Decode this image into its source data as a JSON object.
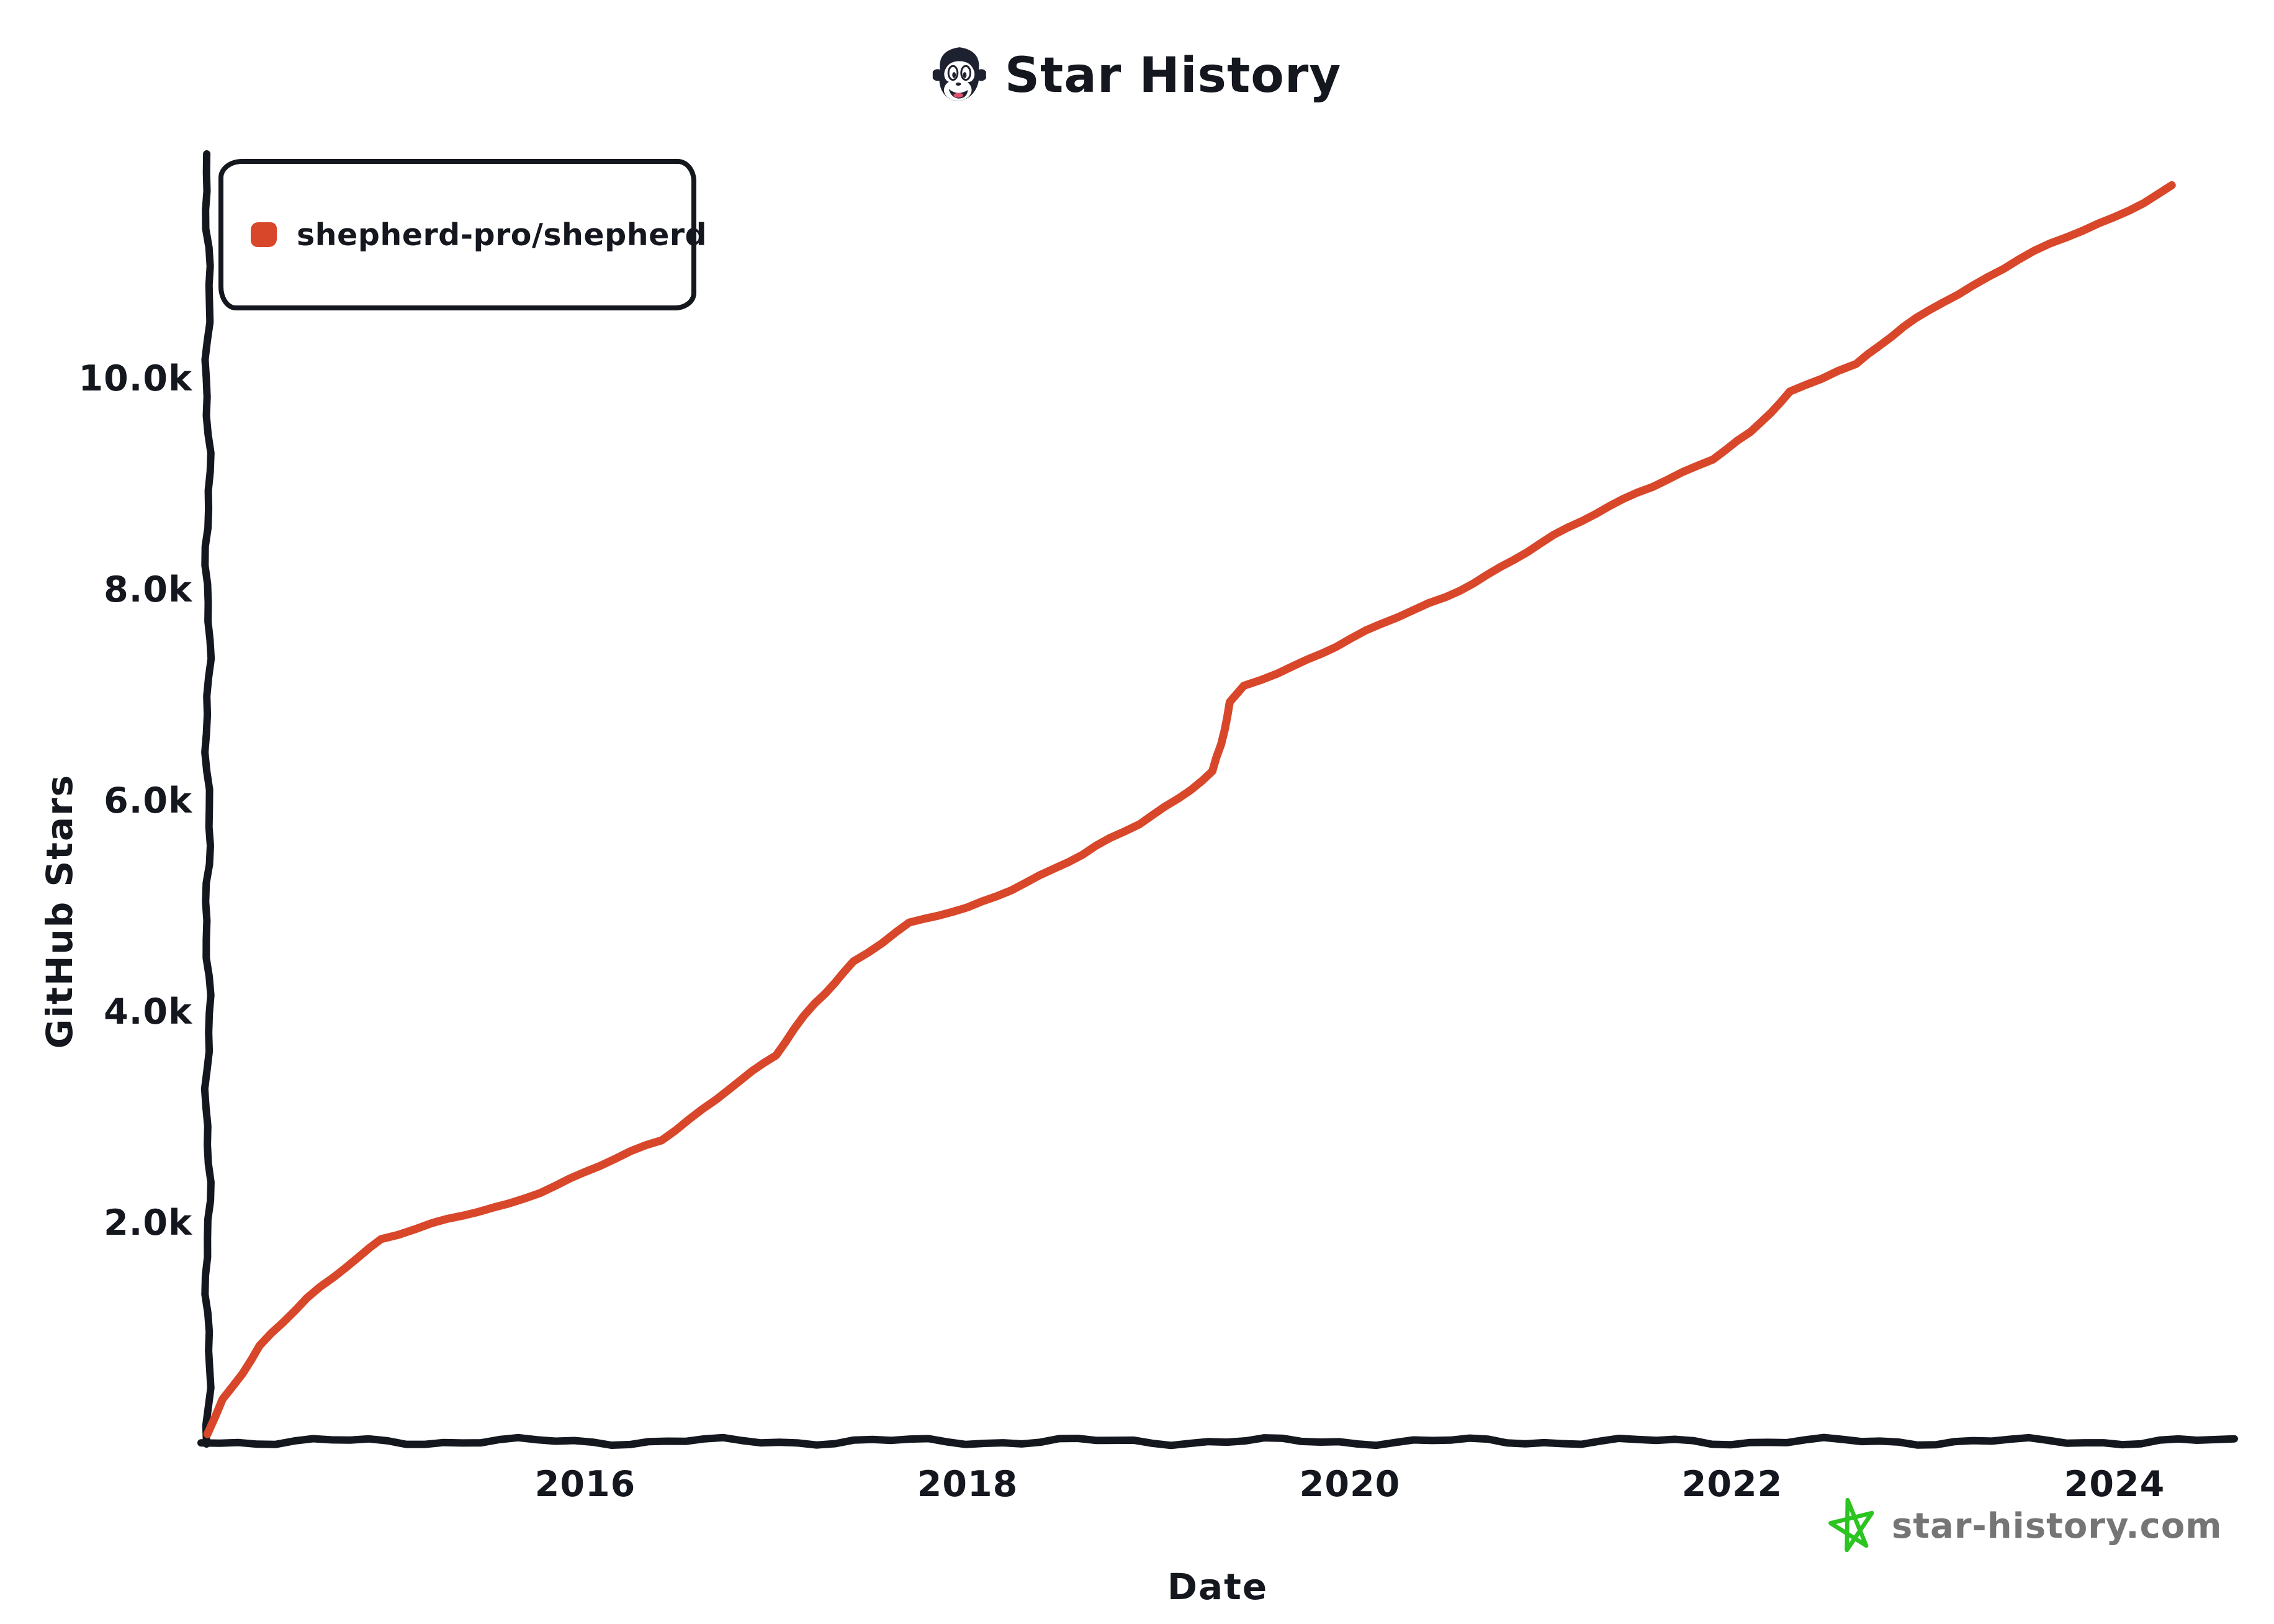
{
  "page": {
    "background": "#ffffff",
    "text_color": "#15171f"
  },
  "header": {
    "title": "Star History",
    "logo_icon": "monkey-face-icon"
  },
  "legend": {
    "label": "shepherd-pro/shepherd",
    "swatch_color": "#d9472b"
  },
  "watermark": {
    "text": "star-history.com",
    "icon": "green-star-icon",
    "text_color": "#757575",
    "star_color": "#2bc421"
  },
  "chart_data": {
    "type": "line",
    "title": "Star History",
    "xlabel": "Date",
    "ylabel": "GitHub Stars",
    "legend_position": "top-left",
    "grid": false,
    "style": "hand-drawn-xkcd",
    "axis_color": "#15171f",
    "x_ticks": [
      2016,
      2018,
      2020,
      2022,
      2024
    ],
    "y_ticks": [
      {
        "label": "2.0k",
        "value": 2000
      },
      {
        "label": "4.0k",
        "value": 4000
      },
      {
        "label": "6.0k",
        "value": 6000
      },
      {
        "label": "8.0k",
        "value": 8000
      },
      {
        "label": "10.0k",
        "value": 10000
      }
    ],
    "xlim": [
      2014.0,
      2024.62
    ],
    "ylim": [
      0,
      12100
    ],
    "series": [
      {
        "name": "shepherd-pro/shepherd",
        "color": "#d9472b",
        "x": [
          2014.02,
          2014.1,
          2014.3,
          2014.55,
          2014.75,
          2014.93,
          2015.2,
          2015.6,
          2016.0,
          2016.4,
          2016.75,
          2017.0,
          2017.2,
          2017.4,
          2017.7,
          2018.0,
          2018.3,
          2018.6,
          2018.9,
          2019.1,
          2019.28,
          2019.33,
          2019.38,
          2019.45,
          2019.7,
          2020.0,
          2020.5,
          2021.0,
          2021.5,
          2021.9,
          2022.1,
          2022.3,
          2022.55,
          2022.65,
          2022.9,
          2023.1,
          2023.5,
          2024.0,
          2024.3
        ],
        "stars": [
          20,
          350,
          850,
          1300,
          1620,
          1870,
          2000,
          2200,
          2500,
          2800,
          3300,
          3600,
          4100,
          4500,
          4850,
          5000,
          5250,
          5500,
          5800,
          6050,
          6300,
          6550,
          6950,
          7100,
          7300,
          7550,
          7950,
          8450,
          8950,
          9250,
          9500,
          9900,
          10100,
          10150,
          10500,
          10750,
          11150,
          11550,
          11850
        ]
      }
    ]
  }
}
